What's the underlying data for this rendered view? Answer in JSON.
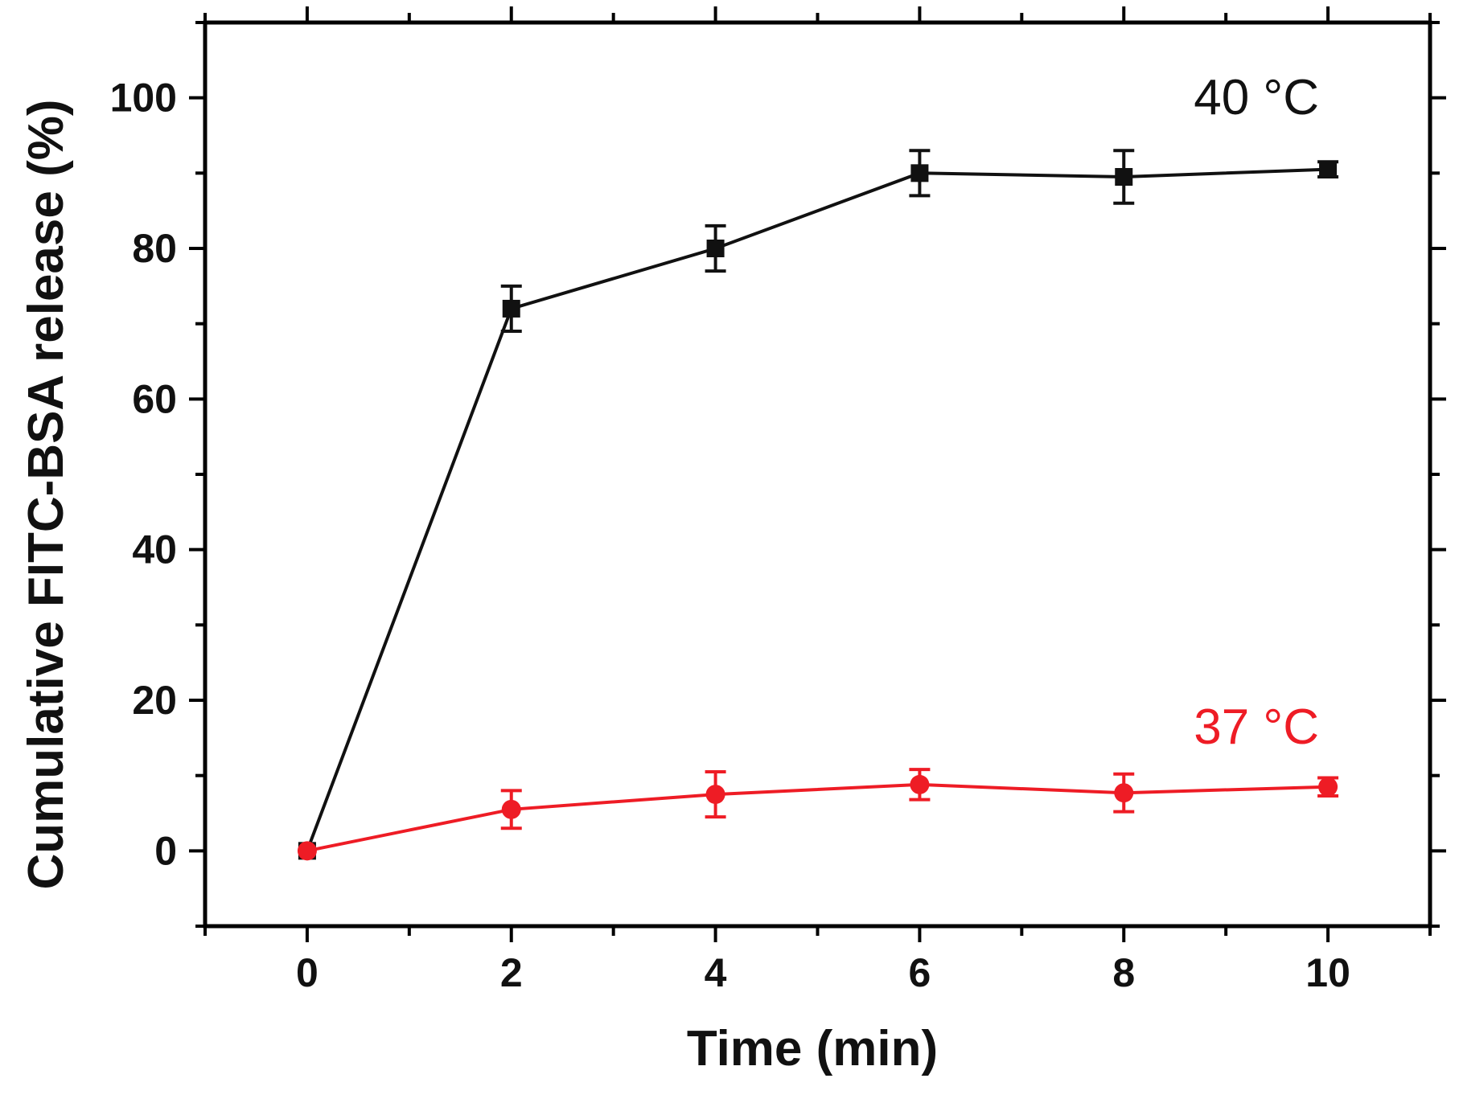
{
  "chart_data": {
    "type": "line",
    "title": "",
    "xlabel": "Time (min)",
    "ylabel": "Cumulative FITC-BSA release (%)",
    "xlim": [
      -1,
      11
    ],
    "ylim": [
      -10,
      110
    ],
    "xticks": [
      0,
      2,
      4,
      6,
      8,
      10
    ],
    "yticks": [
      0,
      20,
      40,
      60,
      80,
      100
    ],
    "x": [
      0,
      2,
      4,
      6,
      8,
      10
    ],
    "series": [
      {
        "name": "40 °C",
        "label_text": "40 °C",
        "color": "#111111",
        "marker": "square",
        "values": [
          0,
          72,
          80,
          90,
          89.5,
          90.5
        ],
        "errors": [
          0,
          3,
          3,
          3,
          3.5,
          1
        ]
      },
      {
        "name": "37 °C",
        "label_text": "37 °C",
        "color": "#ee1c25",
        "marker": "circle",
        "values": [
          0,
          5.5,
          7.5,
          8.8,
          7.7,
          8.5
        ],
        "errors": [
          0,
          2.5,
          3,
          2,
          2.5,
          1.2
        ]
      }
    ],
    "grid": false,
    "legend": "inline labels top-right and right"
  }
}
